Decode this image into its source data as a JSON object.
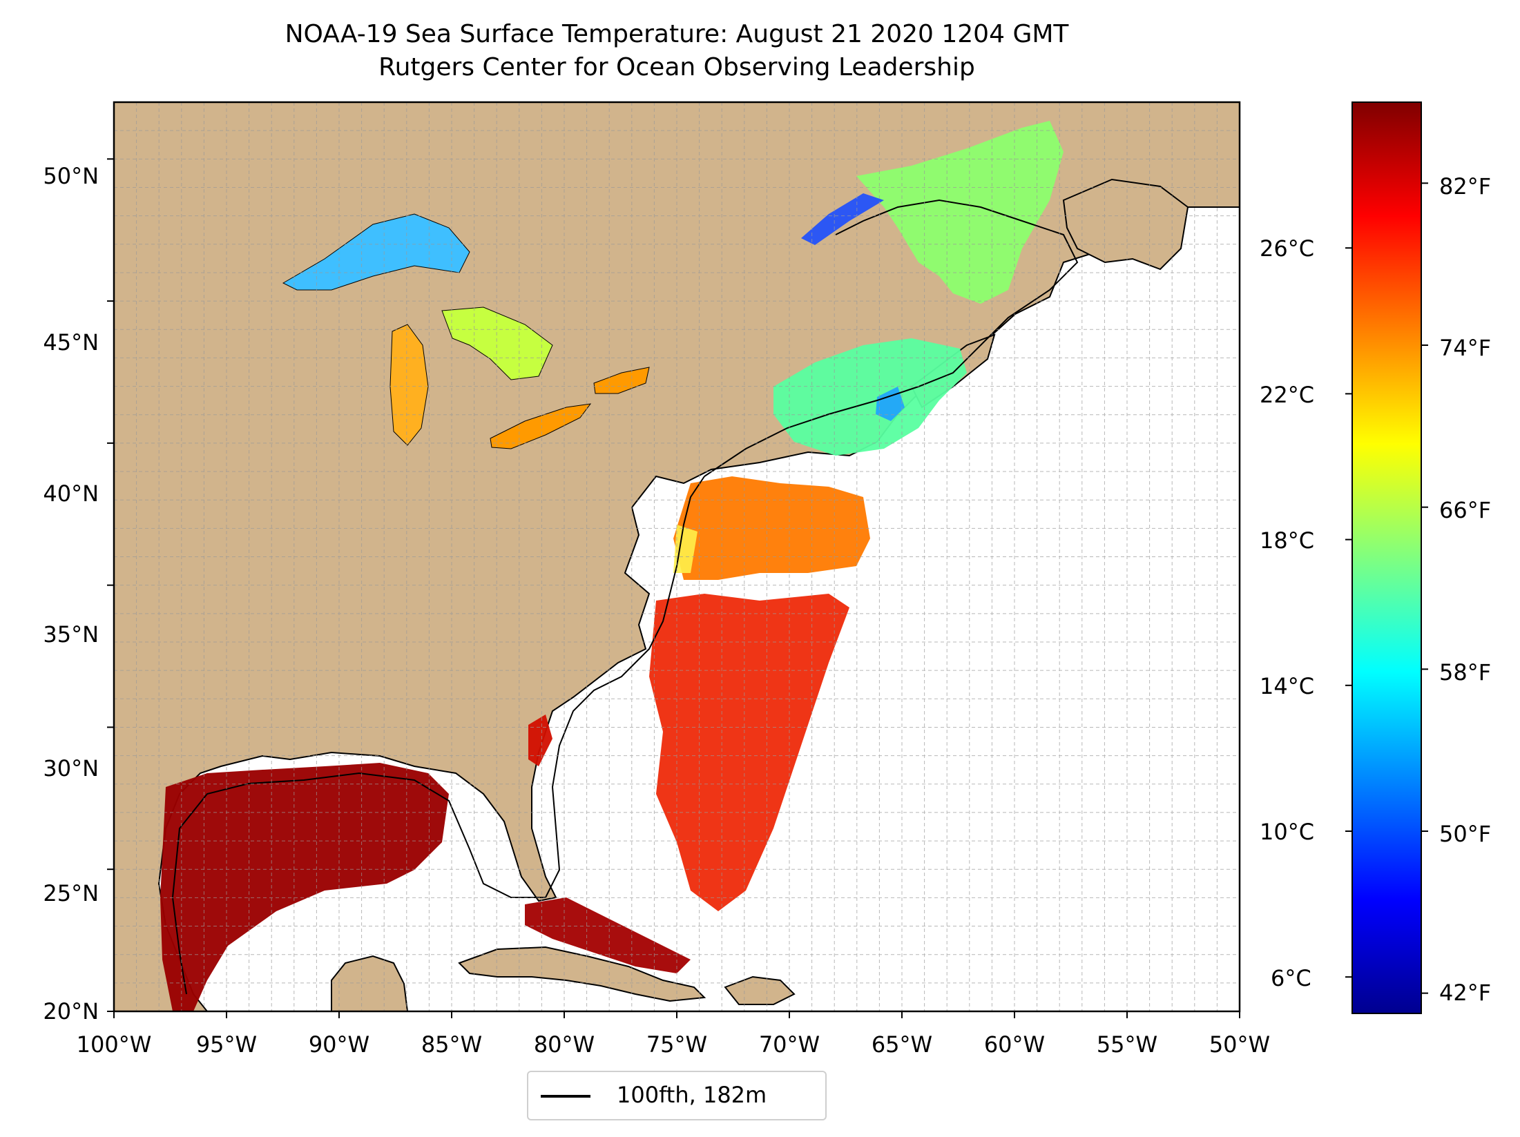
{
  "title": {
    "line1": "NOAA-19 Sea Surface Temperature: August 21 2020 1204 GMT",
    "line2": "Rutgers Center for Ocean Observing Leadership"
  },
  "map": {
    "extent_lon": [
      -100,
      -50
    ],
    "extent_lat": [
      20,
      52
    ],
    "x_ticks": [
      "100°W",
      "95°W",
      "90°W",
      "85°W",
      "80°W",
      "75°W",
      "70°W",
      "65°W",
      "60°W",
      "55°W",
      "50°W"
    ],
    "y_ticks": [
      "20°N",
      "25°N",
      "30°N",
      "35°N",
      "40°N",
      "45°N",
      "50°N"
    ],
    "gridlines": true,
    "land_color": "#d1b48c",
    "lake_color": "#9fb8e0",
    "ocean_color": "#ffffff"
  },
  "colorbar": {
    "colormap": "jet",
    "celsius_ticks": [
      "26°C",
      "22°C",
      "18°C",
      "14°C",
      "10°C",
      "6°C"
    ],
    "fahrenheit_ticks": [
      "82°F",
      "74°F",
      "66°F",
      "58°F",
      "50°F",
      "42°F"
    ],
    "range_c": [
      5.0,
      30.0
    ]
  },
  "legend": {
    "label": "100fth, 182m",
    "placement": "bottom-center"
  }
}
